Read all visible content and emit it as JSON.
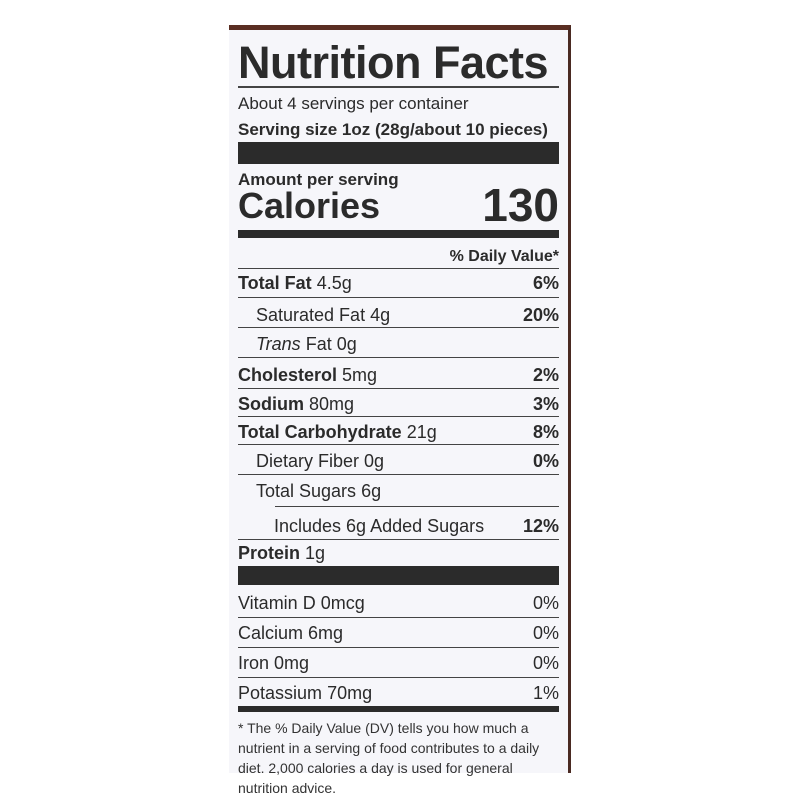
{
  "label": {
    "title": "Nutrition Facts",
    "servings": "About 4 servings per container",
    "serving_size": "Serving size 1oz (28g/about 10 pieces)",
    "amount_per_serving": "Amount per serving",
    "calories_label": "Calories",
    "calories_value": "130",
    "dv_header": "% Daily Value*",
    "nutrients": [
      {
        "name": "Total Fat",
        "amount": "4.5g",
        "dv": "6%"
      },
      {
        "name": "Saturated Fat",
        "amount": "4g",
        "dv": "20%"
      },
      {
        "name": "Trans",
        "name2": "Fat",
        "amount": "0g",
        "dv": ""
      },
      {
        "name": "Cholesterol",
        "amount": "5mg",
        "dv": "2%"
      },
      {
        "name": "Sodium",
        "amount": "80mg",
        "dv": "3%"
      },
      {
        "name": "Total Carbohydrate",
        "amount": "21g",
        "dv": "8%"
      },
      {
        "name": "Dietary Fiber",
        "amount": "0g",
        "dv": "0%"
      },
      {
        "name": "Total Sugars",
        "amount": "6g",
        "dv": ""
      },
      {
        "name": "Includes 6g Added Sugars",
        "amount": "",
        "dv": "12%"
      },
      {
        "name": "Protein",
        "amount": "1g",
        "dv": ""
      }
    ],
    "vitamins": [
      {
        "name": "Vitamin D",
        "amount": "0mcg",
        "dv": "0%"
      },
      {
        "name": "Calcium",
        "amount": "6mg",
        "dv": "0%"
      },
      {
        "name": "Iron",
        "amount": "0mg",
        "dv": "0%"
      },
      {
        "name": "Potassium",
        "amount": "70mg",
        "dv": "1%"
      }
    ],
    "footnote": "* The % Daily Value (DV) tells you how much a nutrient in a serving of food contributes to a daily diet. 2,000 calories a day is used for general nutrition advice."
  }
}
